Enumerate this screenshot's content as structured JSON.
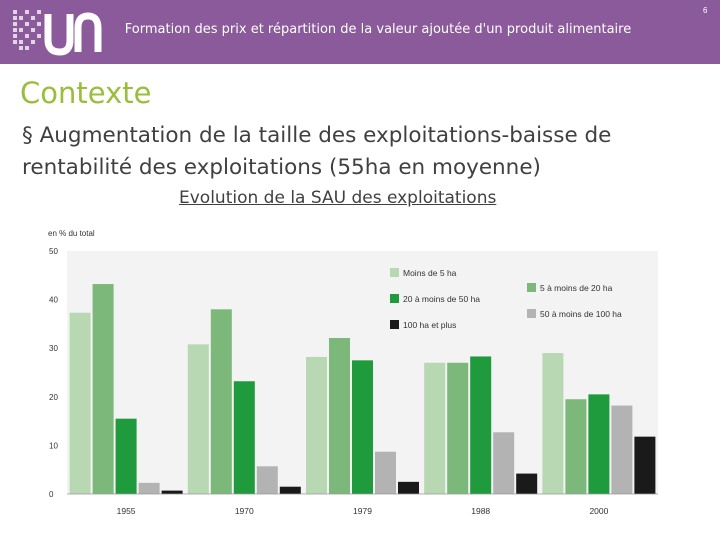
{
  "header": {
    "title": "Formation des prix et répartition de la valeur ajoutée d'un produit alimentaire",
    "page_number": "6",
    "background_color": "#8a5a9a",
    "logo_name": "un-logo"
  },
  "section_title": "Contexte",
  "bullet_text": "§ Augmentation de la taille des exploitations-baisse de rentabilité des exploitations (55ha en moyenne)",
  "chart_caption": "Evolution de la SAU des exploitations",
  "chart_data": {
    "type": "bar",
    "title": "",
    "ylabel": "en % du total",
    "xlabel": "",
    "ylim": [
      0,
      50
    ],
    "yticks": [
      0,
      10,
      20,
      30,
      40,
      50
    ],
    "grid": false,
    "legend_placement": "top-right",
    "categories": [
      "1955",
      "1970",
      "1979",
      "1988",
      "2000"
    ],
    "series": [
      {
        "name": "Moins de 5 ha",
        "color": "#b8d8b4",
        "values": [
          37.3,
          30.8,
          28.2,
          27.0,
          29.0
        ]
      },
      {
        "name": "5 à moins de 20 ha",
        "color": "#7bb87a",
        "values": [
          43.2,
          38.0,
          32.1,
          27.0,
          19.5
        ]
      },
      {
        "name": "20 à moins de 50 ha",
        "color": "#1f9a3c",
        "values": [
          15.5,
          23.2,
          27.5,
          28.3,
          20.5
        ]
      },
      {
        "name": "50 à moins de 100 ha",
        "color": "#b3b3b3",
        "values": [
          2.3,
          5.7,
          8.7,
          12.7,
          18.2
        ]
      },
      {
        "name": "100 ha et plus",
        "color": "#1a1a1a",
        "values": [
          0.7,
          1.5,
          2.5,
          4.2,
          11.8
        ]
      }
    ]
  }
}
